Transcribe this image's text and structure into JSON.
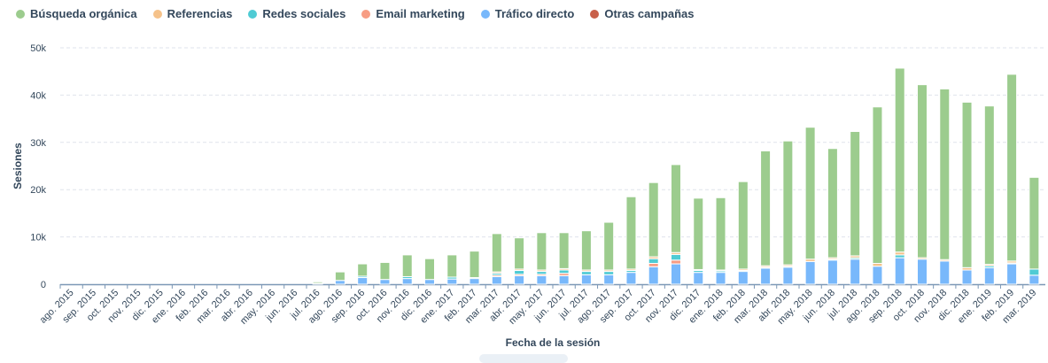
{
  "chart_data": {
    "type": "bar",
    "stacked": true,
    "title": "",
    "xlabel": "Fecha de la sesión",
    "ylabel": "Sesiones",
    "ylim": [
      0,
      50000
    ],
    "yticks": [
      0,
      10000,
      20000,
      30000,
      40000,
      50000
    ],
    "ytick_labels": [
      "0",
      "10k",
      "20k",
      "30k",
      "40k",
      "50k"
    ],
    "grid": true,
    "legend_position": "top-left",
    "categories": [
      "ago. 2015",
      "sep. 2015",
      "oct. 2015",
      "nov. 2015",
      "dic. 2015",
      "ene. 2016",
      "feb. 2016",
      "mar. 2016",
      "abr. 2016",
      "may. 2016",
      "jun. 2016",
      "jul. 2016",
      "ago. 2016",
      "sep. 2016",
      "oct. 2016",
      "nov. 2016",
      "dic. 2016",
      "ene. 2017",
      "feb. 2017",
      "mar. 2017",
      "abr. 2017",
      "may. 2017",
      "jun. 2017",
      "jul. 2017",
      "ago. 2017",
      "sep. 2017",
      "oct. 2017",
      "nov. 2017",
      "dic. 2017",
      "ene. 2018",
      "feb. 2018",
      "mar. 2018",
      "abr. 2018",
      "may. 2018",
      "jun. 2018",
      "jul. 2018",
      "ago. 2018",
      "sep. 2018",
      "oct. 2018",
      "nov. 2018",
      "dic. 2018",
      "ene. 2019",
      "feb. 2019",
      "mar. 2019"
    ],
    "series": [
      {
        "name": "Tráfico directo",
        "color": "#78b8fb",
        "values": [
          0,
          0,
          0,
          0,
          0,
          0,
          0,
          0,
          0,
          0,
          0,
          200,
          800,
          1400,
          1000,
          1200,
          1000,
          1100,
          1200,
          1600,
          1800,
          1800,
          1800,
          2000,
          2000,
          2500,
          3700,
          4300,
          2500,
          2500,
          2700,
          3400,
          3600,
          4800,
          5100,
          5300,
          3800,
          5600,
          5300,
          4900,
          3000,
          3500,
          4300,
          1900
        ]
      },
      {
        "name": "Email marketing",
        "color": "#f79d84",
        "values": [
          0,
          0,
          0,
          0,
          0,
          0,
          0,
          0,
          0,
          0,
          0,
          0,
          0,
          0,
          0,
          0,
          0,
          0,
          0,
          300,
          300,
          300,
          500,
          0,
          0,
          0,
          700,
          800,
          0,
          0,
          0,
          0,
          0,
          0,
          0,
          0,
          0,
          0,
          0,
          0,
          0,
          0,
          0,
          0
        ]
      },
      {
        "name": "Redes sociales",
        "color": "#4fcbd4",
        "values": [
          0,
          0,
          0,
          0,
          0,
          0,
          0,
          0,
          0,
          0,
          0,
          0,
          0,
          300,
          0,
          400,
          0,
          400,
          200,
          400,
          800,
          600,
          700,
          700,
          700,
          400,
          1000,
          1200,
          400,
          300,
          200,
          200,
          200,
          0,
          200,
          300,
          0,
          600,
          0,
          0,
          0,
          400,
          200,
          1300
        ]
      },
      {
        "name": "Referencias",
        "color": "#f5c28a",
        "values": [
          0,
          0,
          0,
          0,
          0,
          0,
          0,
          0,
          0,
          0,
          0,
          0,
          0,
          0,
          0,
          0,
          0,
          0,
          0,
          300,
          300,
          300,
          300,
          300,
          300,
          300,
          400,
          400,
          200,
          200,
          300,
          300,
          300,
          500,
          300,
          400,
          600,
          600,
          300,
          300,
          500,
          300,
          400,
          0
        ]
      },
      {
        "name": "Búsqueda orgánica",
        "color": "#9ccc8e",
        "values": [
          0,
          0,
          0,
          0,
          0,
          0,
          0,
          0,
          0,
          0,
          0,
          300,
          1800,
          2600,
          3600,
          4600,
          4400,
          4700,
          5600,
          8100,
          6600,
          7900,
          7600,
          8300,
          10100,
          15300,
          15700,
          18600,
          15100,
          15300,
          18500,
          24300,
          26200,
          27900,
          23100,
          26300,
          33100,
          38900,
          36600,
          36100,
          35000,
          33500,
          39500,
          19400
        ]
      },
      {
        "name": "Otras campañas",
        "color": "#c8604a",
        "values": [
          0,
          0,
          0,
          0,
          0,
          0,
          0,
          0,
          0,
          0,
          0,
          0,
          0,
          0,
          0,
          0,
          0,
          0,
          0,
          0,
          0,
          0,
          0,
          0,
          0,
          0,
          0,
          0,
          0,
          0,
          0,
          0,
          0,
          0,
          0,
          0,
          0,
          0,
          0,
          0,
          0,
          0,
          0,
          0
        ]
      }
    ],
    "legend_order": [
      "Búsqueda orgánica",
      "Referencias",
      "Redes sociales",
      "Email marketing",
      "Tráfico directo",
      "Otras campañas"
    ]
  }
}
